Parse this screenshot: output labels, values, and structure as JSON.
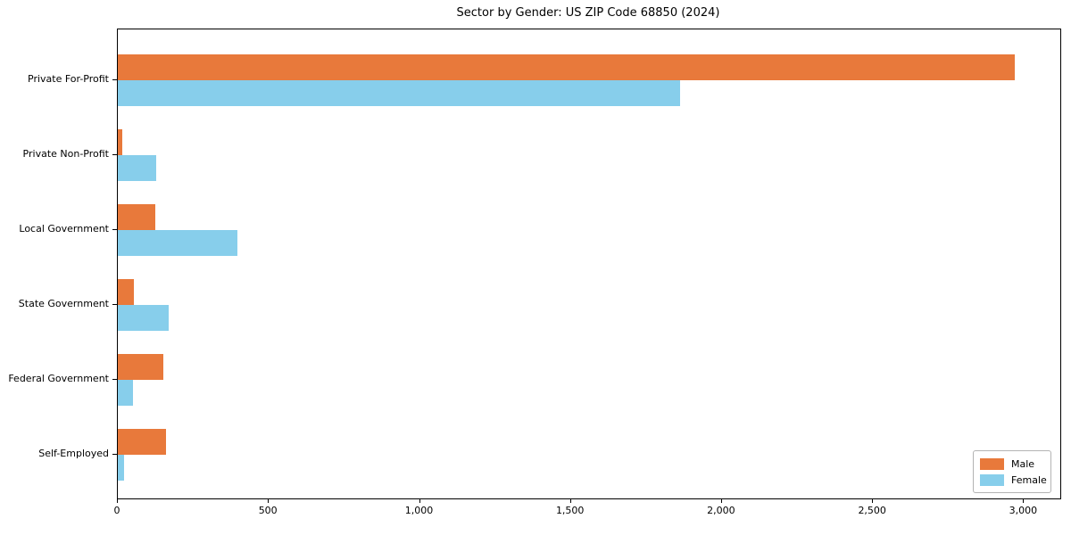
{
  "title": "Sector by Gender: US ZIP Code 68850 (2024)",
  "chart_data": {
    "type": "bar",
    "orientation": "horizontal",
    "title": "Sector by Gender: US ZIP Code 68850 (2024)",
    "categories": [
      "Private For-Profit",
      "Private Non-Profit",
      "Local Government",
      "State Government",
      "Federal Government",
      "Self-Employed"
    ],
    "series": [
      {
        "name": "Male",
        "color": "#e8793b",
        "values": [
          2970,
          16,
          124,
          53,
          152,
          160
        ]
      },
      {
        "name": "Female",
        "color": "#87ceeb",
        "values": [
          1860,
          127,
          395,
          168,
          51,
          22
        ]
      }
    ],
    "xlabel": "",
    "ylabel": "",
    "xlim": [
      0,
      3120
    ],
    "xticks": [
      0,
      500,
      1000,
      1500,
      2000,
      2500,
      3000
    ],
    "xtick_labels": [
      "0",
      "500",
      "1,000",
      "1,500",
      "2,000",
      "2,500",
      "3,000"
    ],
    "grid": false,
    "legend": {
      "position": "lower right"
    },
    "colors": {
      "axis": "#000000",
      "background": "#ffffff"
    }
  }
}
